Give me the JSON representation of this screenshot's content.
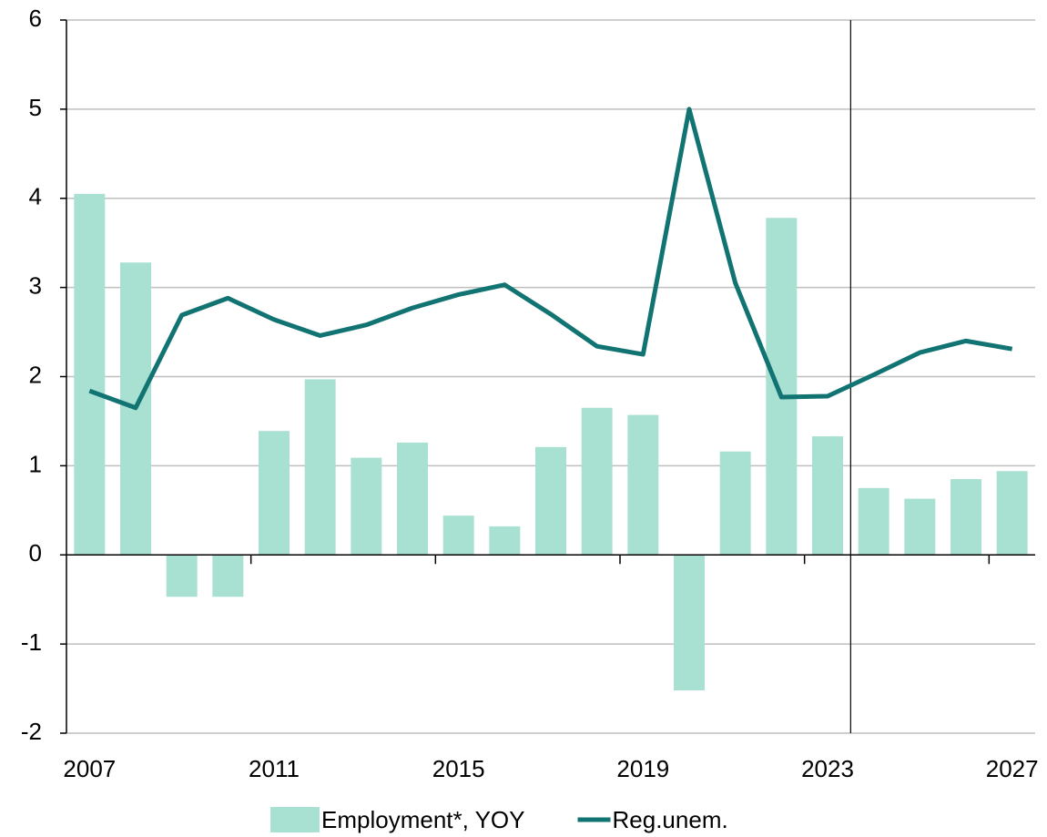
{
  "chart_data": {
    "type": "bar_line",
    "categories": [
      "2007",
      null,
      null,
      null,
      "2011",
      null,
      null,
      null,
      "2015",
      null,
      null,
      null,
      "2019",
      null,
      null,
      null,
      "2023",
      null,
      null,
      null,
      "2027"
    ],
    "series": [
      {
        "name": "Employment*, YOY",
        "type": "bar",
        "color": "#a8e0d2",
        "values": [
          4.05,
          3.28,
          -0.47,
          -0.47,
          1.39,
          1.97,
          1.09,
          1.26,
          0.44,
          0.32,
          1.21,
          1.65,
          1.57,
          -1.52,
          1.16,
          3.78,
          1.33,
          0.75,
          0.63,
          0.85,
          0.94
        ]
      },
      {
        "name": "Reg.unem.",
        "type": "line",
        "color": "#127373",
        "values": [
          1.84,
          1.65,
          2.69,
          2.88,
          2.64,
          2.46,
          2.58,
          2.77,
          2.92,
          3.03,
          2.7,
          2.34,
          2.25,
          5.0,
          3.05,
          1.77,
          1.78,
          2.02,
          2.27,
          2.4,
          2.31
        ]
      }
    ],
    "ylim": [
      -2,
      6
    ],
    "yticks": [
      -2,
      -1,
      0,
      1,
      2,
      3,
      4,
      5,
      6
    ],
    "grid": true,
    "legend": "bottom"
  }
}
